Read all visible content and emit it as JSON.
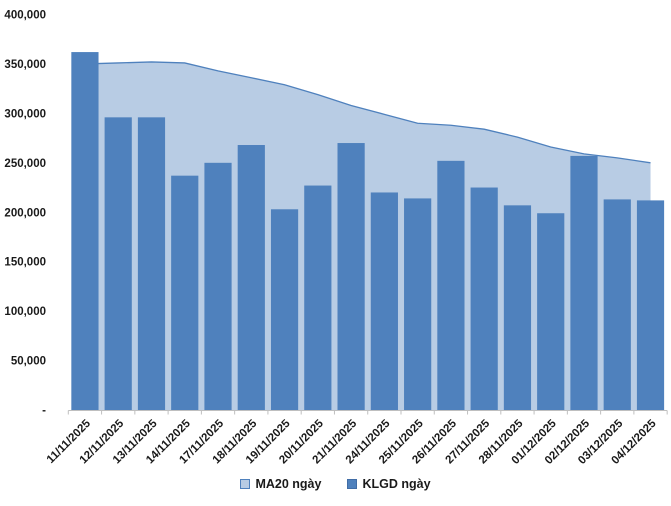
{
  "chart_data": {
    "type": "bar",
    "subtype": "bars-with-area-overlay",
    "title": "",
    "xlabel": "",
    "ylabel": "",
    "categories": [
      "11/11/2025",
      "12/11/2025",
      "13/11/2025",
      "14/11/2025",
      "17/11/2025",
      "18/11/2025",
      "19/11/2025",
      "20/11/2025",
      "21/11/2025",
      "24/11/2025",
      "25/11/2025",
      "26/11/2025",
      "27/11/2025",
      "28/11/2025",
      "01/12/2025",
      "02/12/2025",
      "03/12/2025",
      "04/12/2025"
    ],
    "series": [
      {
        "name": "MA20 ngày",
        "type": "area",
        "values": [
          350000,
          351000,
          352000,
          351000,
          343000,
          336000,
          329000,
          319000,
          308000,
          299000,
          290000,
          288000,
          284000,
          276000,
          266000,
          259000,
          255000,
          250000
        ]
      },
      {
        "name": "KLGD ngày",
        "type": "bar",
        "values": [
          362000,
          296000,
          296000,
          237000,
          250000,
          268000,
          203000,
          227000,
          270000,
          220000,
          214000,
          252000,
          225000,
          207000,
          199000,
          257000,
          213000,
          212000
        ]
      }
    ],
    "ylim": [
      0,
      400000
    ],
    "ytick_step": 50000,
    "yticks": [
      {
        "value": 0,
        "label": "-"
      },
      {
        "value": 50000,
        "label": "50,000"
      },
      {
        "value": 100000,
        "label": "100,000"
      },
      {
        "value": 150000,
        "label": "150,000"
      },
      {
        "value": 200000,
        "label": "200,000"
      },
      {
        "value": 250000,
        "label": "250,000"
      },
      {
        "value": 300000,
        "label": "300,000"
      },
      {
        "value": 350000,
        "label": "350,000"
      },
      {
        "value": 400000,
        "label": "400,000"
      }
    ],
    "grid": false,
    "legend_position": "bottom"
  },
  "colors": {
    "bar_fill": "#4F81BD",
    "area_fill": "#B8CCE4",
    "ma_line": "#4F81BD",
    "axis_line": "#BFBFBF",
    "text": "#1a1a1a"
  }
}
